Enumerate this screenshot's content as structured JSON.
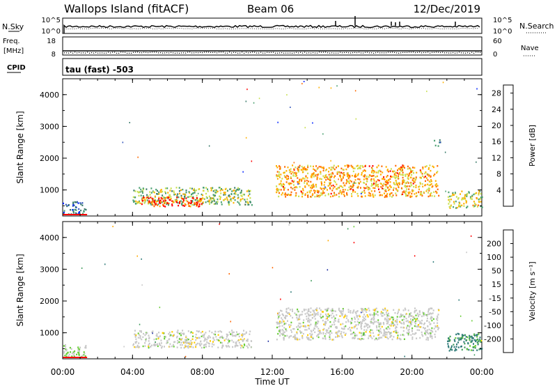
{
  "header": {
    "station": "Wallops Island (fitACF)",
    "beam": "Beam 06",
    "date": "12/Dec/2019"
  },
  "params": {
    "nsky_label": "N.Sky",
    "nsky_top": "10^5",
    "nsky_bottom": "10^0",
    "nsearch_label": "N.Search",
    "nsearch_top": "10^5",
    "nsearch_bottom": "10^0",
    "freq_label": "Freq.",
    "freq_unit": "[MHz]",
    "freq_top": "18",
    "freq_bottom": "8",
    "nave_label": "Nave",
    "nave_top": "60",
    "nave_bottom": "0",
    "cpid_label": "CPID",
    "cpid_value": "tau (fast) -503"
  },
  "chart_data": [
    {
      "type": "heatmap",
      "title": "",
      "quantity": "Power",
      "xlabel": "",
      "ylabel": "Slant Range [km]",
      "x_ticks": [
        "00:00",
        "04:00",
        "08:00",
        "12:00",
        "16:00",
        "20:00",
        "00:00"
      ],
      "xlim_hours": [
        0,
        24
      ],
      "y_ticks": [
        1000,
        2000,
        3000,
        4000
      ],
      "ylim_km": [
        180,
        4500
      ],
      "colorbar": {
        "label": "Power [dB]",
        "ticks": [
          4,
          8,
          12,
          16,
          20,
          24,
          28
        ],
        "range": [
          0,
          30
        ],
        "colors": [
          "#0022ff",
          "#3355bb",
          "#3a7a6a",
          "#4aa070",
          "#c8e050",
          "#ffb000",
          "#ff6a00",
          "#ff0000"
        ]
      },
      "echo_regions": [
        {
          "t_start": 0.0,
          "t_end": 1.3,
          "r_start": 250,
          "r_end": 650,
          "power_db": 6
        },
        {
          "t_start": 4.0,
          "t_end": 10.8,
          "r_start": 550,
          "r_end": 1100,
          "power_db": 16
        },
        {
          "t_start": 4.5,
          "t_end": 8.0,
          "r_start": 500,
          "r_end": 800,
          "power_db": 28
        },
        {
          "t_start": 12.2,
          "t_end": 21.5,
          "r_start": 800,
          "r_end": 1800,
          "power_db": 22
        },
        {
          "t_start": 21.2,
          "t_end": 21.6,
          "r_start": 2350,
          "r_end": 2650,
          "power_db": 10
        },
        {
          "t_start": 22.0,
          "t_end": 24.0,
          "r_start": 450,
          "r_end": 1000,
          "power_db": 18
        }
      ]
    },
    {
      "type": "heatmap",
      "title": "",
      "quantity": "Velocity",
      "xlabel": "Time UT",
      "ylabel": "Slant Range [km]",
      "x_ticks": [
        "00:00",
        "04:00",
        "08:00",
        "12:00",
        "16:00",
        "20:00",
        "00:00"
      ],
      "xlim_hours": [
        0,
        24
      ],
      "y_ticks": [
        1000,
        2000,
        3000,
        4000
      ],
      "ylim_km": [
        180,
        4500
      ],
      "colorbar": {
        "label": "Velocity [m s⁻¹]",
        "ticks": [
          "200",
          "100",
          "50",
          "15",
          "-15",
          "-50",
          "-100",
          "-200"
        ],
        "colors": [
          "#1a2aa0",
          "#2e7a78",
          "#3d9b5a",
          "#66cc33",
          "#c8c8c8",
          "#ffcc00",
          "#ffaa00",
          "#ff6600",
          "#ff0000"
        ]
      },
      "echo_regions": [
        {
          "t_start": 0.0,
          "t_end": 1.3,
          "r_start": 250,
          "r_end": 650,
          "velocity": 30
        },
        {
          "t_start": 4.0,
          "t_end": 10.8,
          "r_start": 550,
          "r_end": 1100,
          "velocity": 0
        },
        {
          "t_start": 6.8,
          "t_end": 7.6,
          "r_start": 550,
          "r_end": 750,
          "velocity": -40
        },
        {
          "t_start": 12.2,
          "t_end": 21.5,
          "r_start": 800,
          "r_end": 1800,
          "velocity": 0
        },
        {
          "t_start": 22.0,
          "t_end": 24.0,
          "r_start": 450,
          "r_end": 1000,
          "velocity": 90
        }
      ]
    }
  ]
}
